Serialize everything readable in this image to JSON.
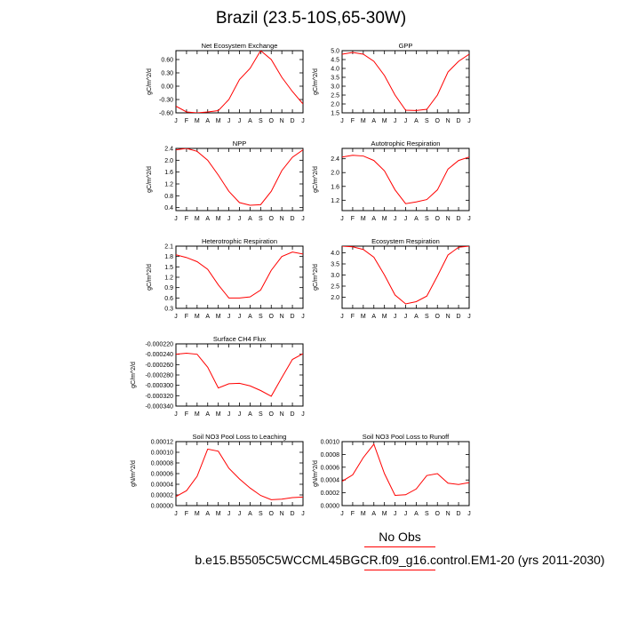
{
  "title": "Brazil (23.5-10S,65-30W)",
  "legend": {
    "obs_label": "No Obs",
    "model_label": "b.e15.B5505C5WCCML45BGCR.f09_g16.control.EM1-20 (yrs 2011-2030)",
    "line_color": "#ff0000"
  },
  "x_tick_labels": [
    "J",
    "F",
    "M",
    "A",
    "M",
    "J",
    "J",
    "A",
    "S",
    "O",
    "N",
    "D",
    "J"
  ],
  "chart_data": [
    {
      "type": "line",
      "title": "Net Ecosystem Exchange",
      "ylabel": "gC/m^2/d",
      "ylim": [
        -0.6,
        0.8
      ],
      "yticks": [
        -0.6,
        -0.3,
        0.0,
        0.3,
        0.6
      ],
      "ytick_labels": [
        "-0.60",
        "-0.30",
        "0.00",
        "0.30",
        "0.60"
      ],
      "values": [
        -0.45,
        -0.58,
        -0.6,
        -0.58,
        -0.55,
        -0.3,
        0.15,
        0.4,
        0.8,
        0.6,
        0.2,
        -0.12,
        -0.4
      ]
    },
    {
      "type": "line",
      "title": "GPP",
      "ylabel": "gC/m^2/d",
      "ylim": [
        1.5,
        5.0
      ],
      "yticks": [
        1.5,
        2.0,
        2.5,
        3.0,
        3.5,
        4.0,
        4.5,
        5.0
      ],
      "ytick_labels": [
        "1.5",
        "2.0",
        "2.5",
        "3.0",
        "3.5",
        "4.0",
        "4.5",
        "5.0"
      ],
      "values": [
        4.8,
        4.9,
        4.8,
        4.4,
        3.6,
        2.5,
        1.65,
        1.63,
        1.7,
        2.5,
        3.8,
        4.4,
        4.8
      ]
    },
    {
      "type": "line",
      "title": "NPP",
      "ylabel": "gC/m^2/d",
      "ylim": [
        0.3,
        2.4
      ],
      "yticks": [
        0.4,
        0.8,
        1.2,
        1.6,
        2.0,
        2.4
      ],
      "ytick_labels": [
        "0.4",
        "0.8",
        "1.2",
        "1.6",
        "2.0",
        "2.4"
      ],
      "values": [
        2.35,
        2.4,
        2.3,
        2.0,
        1.5,
        0.95,
        0.57,
        0.48,
        0.5,
        0.95,
        1.65,
        2.1,
        2.35
      ]
    },
    {
      "type": "line",
      "title": "Autotrophic Respiration",
      "ylabel": "gC/m^2/d",
      "ylim": [
        0.9,
        2.7
      ],
      "yticks": [
        1.2,
        1.6,
        2.0,
        2.4
      ],
      "ytick_labels": [
        "1.2",
        "1.6",
        "2.0",
        "2.4"
      ],
      "values": [
        2.45,
        2.5,
        2.48,
        2.35,
        2.05,
        1.5,
        1.1,
        1.15,
        1.22,
        1.5,
        2.1,
        2.35,
        2.45
      ]
    },
    {
      "type": "line",
      "title": "Heterotrophic Respiration",
      "ylabel": "gC/m^2/d",
      "ylim": [
        0.3,
        2.1
      ],
      "yticks": [
        0.3,
        0.6,
        0.9,
        1.2,
        1.5,
        1.8,
        2.1
      ],
      "ytick_labels": [
        "0.3",
        "0.6",
        "0.9",
        "1.2",
        "1.5",
        "1.8",
        "2.1"
      ],
      "values": [
        1.85,
        1.77,
        1.65,
        1.43,
        0.98,
        0.6,
        0.6,
        0.63,
        0.83,
        1.4,
        1.8,
        1.93,
        1.87
      ]
    },
    {
      "type": "line",
      "title": "Ecosystem Respiration",
      "ylabel": "gC/m^2/d",
      "ylim": [
        1.5,
        4.3
      ],
      "yticks": [
        2.0,
        2.5,
        3.0,
        3.5,
        4.0
      ],
      "ytick_labels": [
        "2.0",
        "2.5",
        "3.0",
        "3.5",
        "4.0"
      ],
      "values": [
        4.3,
        4.27,
        4.15,
        3.8,
        3.0,
        2.1,
        1.7,
        1.8,
        2.05,
        2.95,
        3.9,
        4.25,
        4.3
      ]
    },
    {
      "type": "line",
      "title": "Surface CH4 Flux",
      "ylabel": "gC/m^2/d",
      "ylim": [
        -0.00034,
        -0.00022
      ],
      "yticks": [
        -0.00034,
        -0.00032,
        -0.0003,
        -0.00028,
        -0.00026,
        -0.00024,
        -0.00022
      ],
      "ytick_labels": [
        "-0.000340",
        "-0.000320",
        "-0.000300",
        "-0.000280",
        "-0.000260",
        "-0.000240",
        "-0.000220"
      ],
      "values": [
        -0.00024,
        -0.000238,
        -0.00024,
        -0.000265,
        -0.000305,
        -0.000297,
        -0.000296,
        -0.000301,
        -0.00031,
        -0.000321,
        -0.000285,
        -0.00025,
        -0.000239
      ]
    },
    {
      "type": "line",
      "title": "Soil NO3 Pool Loss to Leaching",
      "ylabel": "gN/m^2/d",
      "ylim": [
        0,
        0.00012
      ],
      "yticks": [
        0,
        2e-05,
        4e-05,
        6e-05,
        8e-05,
        0.0001,
        0.00012
      ],
      "ytick_labels": [
        "0.00000",
        "0.00002",
        "0.00004",
        "0.00006",
        "0.00008",
        "0.00010",
        "0.00012"
      ],
      "values": [
        1.7e-05,
        2.8e-05,
        5.5e-05,
        0.000106,
        0.000102,
        7e-05,
        5e-05,
        3.3e-05,
        1.9e-05,
        1.1e-05,
        1.2e-05,
        1.5e-05,
        1.6e-05
      ]
    },
    {
      "type": "line",
      "title": "Soil NO3 Pool Loss to Runoff",
      "ylabel": "gN/m^2/d",
      "ylim": [
        0,
        0.001
      ],
      "yticks": [
        0,
        0.0002,
        0.0004,
        0.0006,
        0.0008,
        0.001
      ],
      "ytick_labels": [
        "0.0000",
        "0.0002",
        "0.0004",
        "0.0006",
        "0.0008",
        "0.0010"
      ],
      "values": [
        0.00038,
        0.00048,
        0.00075,
        0.00096,
        0.0005,
        0.00016,
        0.00017,
        0.00026,
        0.00047,
        0.0005,
        0.00035,
        0.00033,
        0.00036
      ]
    }
  ]
}
